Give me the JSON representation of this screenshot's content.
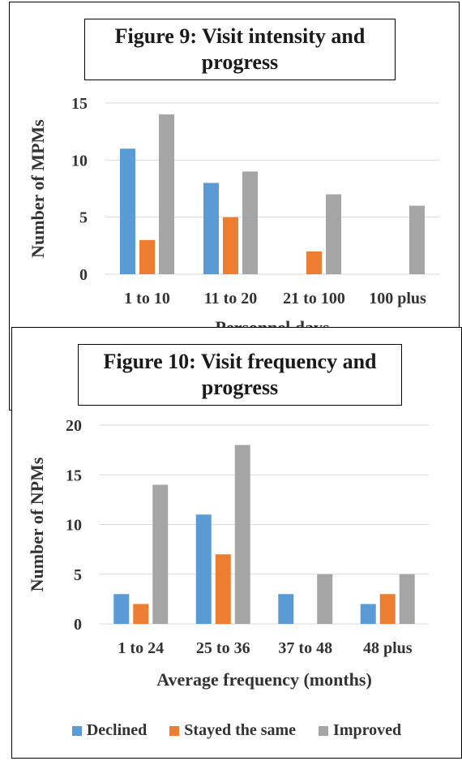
{
  "chart_data": [
    {
      "type": "bar",
      "title": "Figure 9: Visit intensity and progress",
      "xlabel": "Personnel days",
      "ylabel": "Number of MPMs",
      "categories": [
        "1 to 10",
        "11 to 20",
        "21 to 100",
        "100 plus"
      ],
      "series": [
        {
          "name": "Declined",
          "values": [
            11,
            8,
            0,
            0
          ]
        },
        {
          "name": "Stayed the same",
          "values": [
            3,
            5,
            2,
            0
          ]
        },
        {
          "name": "Improved",
          "values": [
            14,
            9,
            7,
            6
          ]
        }
      ],
      "ylim": [
        0,
        15
      ],
      "yticks": [
        0,
        5,
        10,
        15
      ],
      "grid": true
    },
    {
      "type": "bar",
      "title": "Figure 10: Visit frequency and progress",
      "xlabel": "Average frequency (months)",
      "ylabel": "Number of NPMs",
      "categories": [
        "1 to 24",
        "25 to 36",
        "37 to 48",
        "48 plus"
      ],
      "series": [
        {
          "name": "Declined",
          "values": [
            3,
            11,
            3,
            2
          ]
        },
        {
          "name": "Stayed the same",
          "values": [
            2,
            7,
            0,
            3
          ]
        },
        {
          "name": "Improved",
          "values": [
            14,
            18,
            5,
            5
          ]
        }
      ],
      "ylim": [
        0,
        20
      ],
      "yticks": [
        0,
        5,
        10,
        15,
        20
      ],
      "grid": true,
      "legend": "bottom"
    }
  ],
  "colors": {
    "Declined": "#5b9bd5",
    "Stayed the same": "#ed7d31",
    "Improved": "#a5a5a5",
    "grid": "#d9d9d9"
  }
}
